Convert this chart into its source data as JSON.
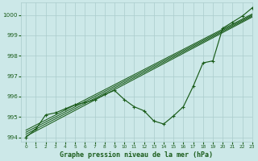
{
  "title": "Graphe pression niveau de la mer (hPa)",
  "bg_color": "#cce8e8",
  "grid_color": "#aacccc",
  "line_color": "#1a5c1a",
  "xlim": [
    -0.5,
    23
  ],
  "ylim": [
    993.8,
    1000.6
  ],
  "yticks": [
    994,
    995,
    996,
    997,
    998,
    999,
    1000
  ],
  "xticks": [
    0,
    1,
    2,
    3,
    4,
    5,
    6,
    7,
    8,
    9,
    10,
    11,
    12,
    13,
    14,
    15,
    16,
    17,
    18,
    19,
    20,
    21,
    22,
    23
  ],
  "main": [
    994.0,
    994.4,
    995.1,
    995.2,
    995.4,
    995.6,
    995.7,
    995.85,
    996.1,
    996.3,
    995.85,
    995.5,
    995.3,
    994.8,
    994.65,
    995.05,
    995.5,
    996.5,
    997.65,
    997.75,
    999.35,
    999.65,
    999.95,
    1000.35
  ],
  "trend_lines": [
    [
      994.05,
      999.9
    ],
    [
      994.15,
      999.95
    ],
    [
      994.25,
      1000.0
    ],
    [
      994.35,
      1000.05
    ]
  ]
}
